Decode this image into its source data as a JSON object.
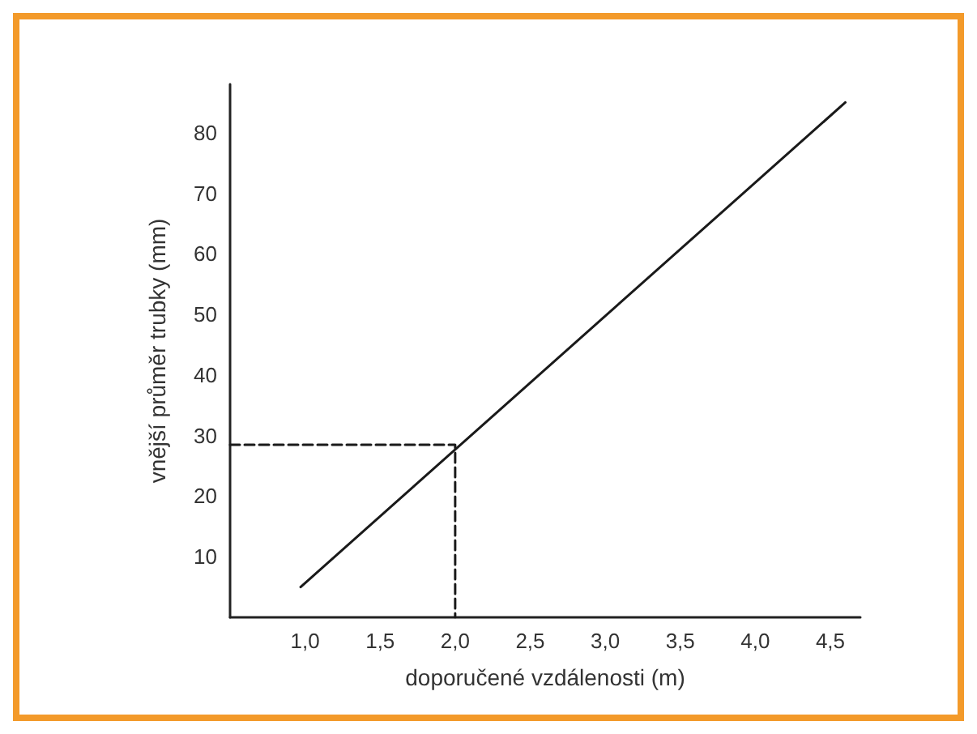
{
  "chart_data": {
    "type": "line",
    "xlabel": "doporučené vzdálenosti (m)",
    "ylabel": "vnější průměr trubky (mm)",
    "series": [
      {
        "color": "#1a1a1a",
        "x": [
          0.97,
          4.6
        ],
        "values": [
          5,
          85
        ],
        "line_style": "solid"
      },
      {
        "color": "#1a1a1a",
        "x": [
          0.5,
          2.0,
          2.0
        ],
        "values": [
          28.5,
          28.5,
          0
        ],
        "line_style": "dashed"
      }
    ],
    "xlim": [
      0.5,
      4.7
    ],
    "ylim": [
      0,
      88
    ],
    "xticks": [
      {
        "value": 1,
        "label": "1,0"
      },
      {
        "value": 1.5,
        "label": "1,5"
      },
      {
        "value": 2,
        "label": "2,0"
      },
      {
        "value": 2.5,
        "label": "2,5"
      },
      {
        "value": 3,
        "label": "3,0"
      },
      {
        "value": 3.5,
        "label": "3,5"
      },
      {
        "value": 4,
        "label": "4,0"
      },
      {
        "value": 4.5,
        "label": "4,5"
      }
    ],
    "yticks": [
      10,
      20,
      30,
      40,
      50,
      60,
      70,
      80
    ],
    "grid": false,
    "marker": "none"
  }
}
